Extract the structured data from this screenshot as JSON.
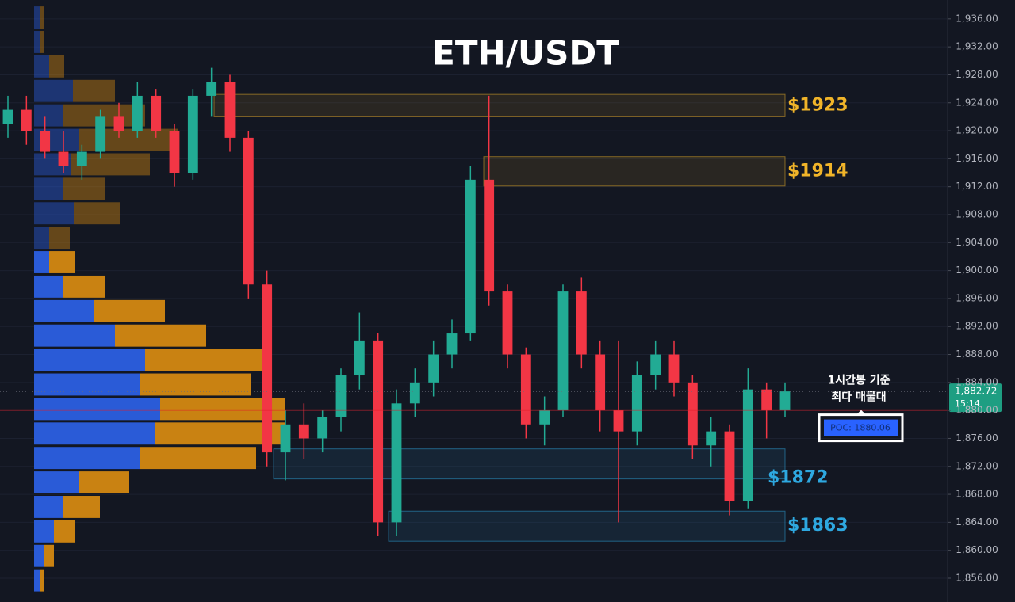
{
  "chart_data": {
    "type": "candlestick",
    "title": "ETH/USDT",
    "ylim": [
      1852.6,
      1938.7
    ],
    "yticks": [
      {
        "value": 1856,
        "label": "1,856.00"
      },
      {
        "value": 1860,
        "label": "1,860.00"
      },
      {
        "value": 1864,
        "label": "1,864.00"
      },
      {
        "value": 1868,
        "label": "1,868.00"
      },
      {
        "value": 1872,
        "label": "1,872.00"
      },
      {
        "value": 1876,
        "label": "1,876.00"
      },
      {
        "value": 1880,
        "label": "1,880.00"
      },
      {
        "value": 1884,
        "label": "1,884.00"
      },
      {
        "value": 1888,
        "label": "1,888.00"
      },
      {
        "value": 1892,
        "label": "1,892.00"
      },
      {
        "value": 1896,
        "label": "1,896.00"
      },
      {
        "value": 1900,
        "label": "1,900.00"
      },
      {
        "value": 1904,
        "label": "1,904.00"
      },
      {
        "value": 1908,
        "label": "1,908.00"
      },
      {
        "value": 1912,
        "label": "1,912.00"
      },
      {
        "value": 1916,
        "label": "1,916.00"
      },
      {
        "value": 1920,
        "label": "1,920.00"
      },
      {
        "value": 1924,
        "label": "1,924.00"
      },
      {
        "value": 1928,
        "label": "1,928.00"
      },
      {
        "value": 1932,
        "label": "1,932.00"
      },
      {
        "value": 1936,
        "label": "1,936.00"
      }
    ],
    "grid": true,
    "up_color": "#22ab94",
    "down_color": "#f23645",
    "series": [
      {
        "open": [
          1921,
          1923,
          1920,
          1917,
          1915,
          1917,
          1922,
          1920,
          1925,
          1920,
          1914,
          1925,
          1927,
          1919,
          1898,
          1874,
          1878,
          1876,
          1879,
          1885,
          1890,
          1864,
          1881,
          1884,
          1888,
          1891,
          1913,
          1897,
          1888,
          1878,
          1880,
          1897,
          1888,
          1880,
          1877,
          1885,
          1888,
          1884,
          1875,
          1877,
          1867,
          1883,
          1880
        ],
        "high": [
          1925,
          1925,
          1922,
          1920,
          1918,
          1923,
          1924,
          1927,
          1926,
          1921,
          1926,
          1929,
          1928,
          1920,
          1900,
          1880,
          1881,
          1880,
          1886,
          1894,
          1891,
          1883,
          1886,
          1890,
          1893,
          1915,
          1925,
          1898,
          1889,
          1882,
          1898,
          1899,
          1890,
          1890,
          1887,
          1890,
          1890,
          1885,
          1879,
          1878,
          1886,
          1884,
          1884
        ],
        "low": [
          1919,
          1918,
          1916,
          1914,
          1913,
          1916,
          1919,
          1919,
          1919,
          1912,
          1913,
          1922,
          1917,
          1896,
          1872,
          1870,
          1873,
          1874,
          1877,
          1883,
          1862,
          1862,
          1879,
          1882,
          1886,
          1890,
          1895,
          1886,
          1876,
          1875,
          1879,
          1886,
          1877,
          1864,
          1875,
          1883,
          1882,
          1873,
          1872,
          1865,
          1866,
          1876,
          1879
        ],
        "close": [
          1923,
          1920,
          1917,
          1915,
          1917,
          1922,
          1920,
          1925,
          1920,
          1914,
          1925,
          1927,
          1919,
          1898,
          1874,
          1878,
          1876,
          1879,
          1885,
          1890,
          1864,
          1881,
          1884,
          1888,
          1891,
          1913,
          1897,
          1888,
          1878,
          1880,
          1897,
          1888,
          1880,
          1877,
          1885,
          1888,
          1884,
          1875,
          1877,
          1867,
          1883,
          1880,
          1882.72
        ]
      }
    ],
    "volume_profile": {
      "levels": [
        1936.2,
        1932.7,
        1929.2,
        1925.7,
        1922.2,
        1918.7,
        1915.2,
        1911.7,
        1908.2,
        1904.7,
        1901.2,
        1897.7,
        1894.2,
        1890.7,
        1887.2,
        1883.7,
        1880.2,
        1876.7,
        1873.2,
        1869.7,
        1866.2,
        1862.7,
        1859.2,
        1855.7
      ],
      "buy": [
        7,
        7,
        19,
        49,
        37,
        57,
        47,
        37,
        50,
        19,
        19,
        37,
        75,
        102,
        140,
        133,
        159,
        152,
        133,
        57,
        37,
        25,
        12,
        7
      ],
      "sell": [
        6,
        6,
        19,
        53,
        103,
        125,
        99,
        52,
        58,
        26,
        32,
        52,
        90,
        115,
        152,
        141,
        158,
        165,
        147,
        63,
        46,
        26,
        13,
        6
      ],
      "buy_color": "#2a5bd7",
      "sell_color": "#c98212"
    },
    "zones": [
      {
        "low": 1922.0,
        "high": 1925.2,
        "label": "$1923",
        "color": "#f0b429"
      },
      {
        "low": 1912.1,
        "high": 1916.3,
        "label": "$1914",
        "color": "#f0b429"
      },
      {
        "low": 1870.2,
        "high": 1874.5,
        "label": "$1872",
        "color": "#2ea8e0"
      },
      {
        "low": 1861.3,
        "high": 1865.6,
        "label": "$1863",
        "color": "#2ea8e0"
      }
    ],
    "poc": {
      "value": 1880.06,
      "label": "POC: 1880.06",
      "color": "#e01e2a"
    },
    "poc_note": [
      "1시간봉 기준",
      "최다 매물대"
    ],
    "last_price": {
      "value": 1882.72,
      "label": "1,882.72",
      "countdown": "15:14"
    }
  }
}
